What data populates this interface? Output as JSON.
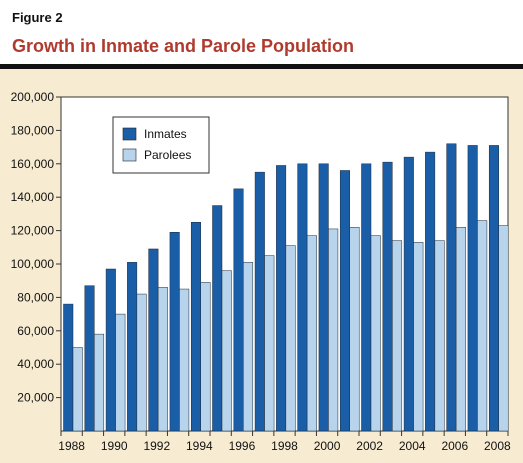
{
  "figure": {
    "label": "Figure 2",
    "title": "Growth in Inmate and Parole Population"
  },
  "colors": {
    "title": "#b03a2e",
    "panel_bg": "#f7ecd2",
    "inmates": "#1a5ea8",
    "parolees": "#b8d4ec"
  },
  "chart_data": {
    "type": "bar",
    "categories": [
      "1988",
      "1989",
      "1990",
      "1991",
      "1992",
      "1993",
      "1994",
      "1995",
      "1996",
      "1997",
      "1998",
      "1999",
      "2000",
      "2001",
      "2002",
      "2003",
      "2004",
      "2005",
      "2006",
      "2007",
      "2008"
    ],
    "x_tick_labels": [
      "1988",
      "1990",
      "1992",
      "1994",
      "1996",
      "1998",
      "2000",
      "2002",
      "2004",
      "2006",
      "2008"
    ],
    "series": [
      {
        "name": "Inmates",
        "color": "#1a5ea8",
        "values": [
          76000,
          87000,
          97000,
          101000,
          109000,
          119000,
          125000,
          135000,
          145000,
          155000,
          159000,
          160000,
          160000,
          156000,
          160000,
          161000,
          164000,
          167000,
          172000,
          171000,
          171000
        ]
      },
      {
        "name": "Parolees",
        "color": "#b8d4ec",
        "values": [
          50000,
          58000,
          70000,
          82000,
          86000,
          85000,
          89000,
          96000,
          101000,
          105000,
          111000,
          117000,
          121000,
          122000,
          117000,
          114000,
          113000,
          114000,
          122000,
          126000,
          123000
        ]
      }
    ],
    "y_ticks": [
      "20,000",
      "40,000",
      "60,000",
      "80,000",
      "100,000",
      "120,000",
      "140,000",
      "160,000",
      "180,000",
      "200,000"
    ],
    "ylim": [
      0,
      200000
    ],
    "legend_position": "top-left",
    "grid": false,
    "xlabel": "",
    "ylabel": ""
  }
}
